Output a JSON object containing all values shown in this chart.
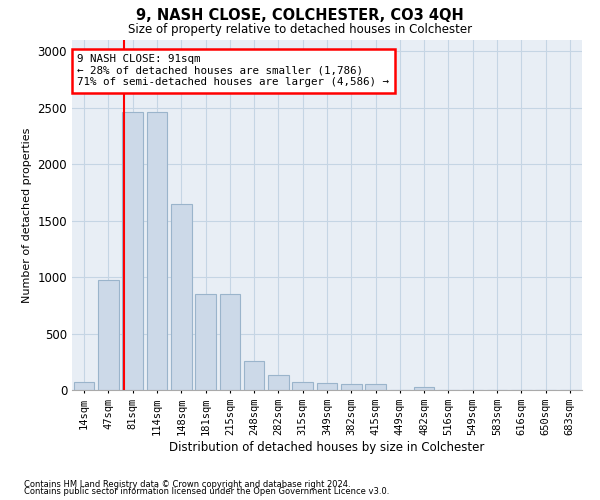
{
  "title": "9, NASH CLOSE, COLCHESTER, CO3 4QH",
  "subtitle": "Size of property relative to detached houses in Colchester",
  "xlabel": "Distribution of detached houses by size in Colchester",
  "ylabel": "Number of detached properties",
  "footnote1": "Contains HM Land Registry data © Crown copyright and database right 2024.",
  "footnote2": "Contains public sector information licensed under the Open Government Licence v3.0.",
  "bar_labels": [
    "14sqm",
    "47sqm",
    "81sqm",
    "114sqm",
    "148sqm",
    "181sqm",
    "215sqm",
    "248sqm",
    "282sqm",
    "315sqm",
    "349sqm",
    "382sqm",
    "415sqm",
    "449sqm",
    "482sqm",
    "516sqm",
    "549sqm",
    "583sqm",
    "616sqm",
    "650sqm",
    "683sqm"
  ],
  "bar_values": [
    75,
    975,
    2460,
    2460,
    1650,
    850,
    850,
    260,
    130,
    75,
    60,
    55,
    50,
    0,
    30,
    0,
    0,
    0,
    0,
    0,
    0
  ],
  "bar_color": "#ccd9e8",
  "bar_edge_color": "#9ab4cb",
  "grid_color": "#c5d5e4",
  "background_color": "#e8eef5",
  "red_line_index": 2,
  "annotation_line1": "9 NASH CLOSE: 91sqm",
  "annotation_line2": "← 28% of detached houses are smaller (1,786)",
  "annotation_line3": "71% of semi-detached houses are larger (4,586) →",
  "ylim": [
    0,
    3100
  ],
  "yticks": [
    0,
    500,
    1000,
    1500,
    2000,
    2500,
    3000
  ]
}
